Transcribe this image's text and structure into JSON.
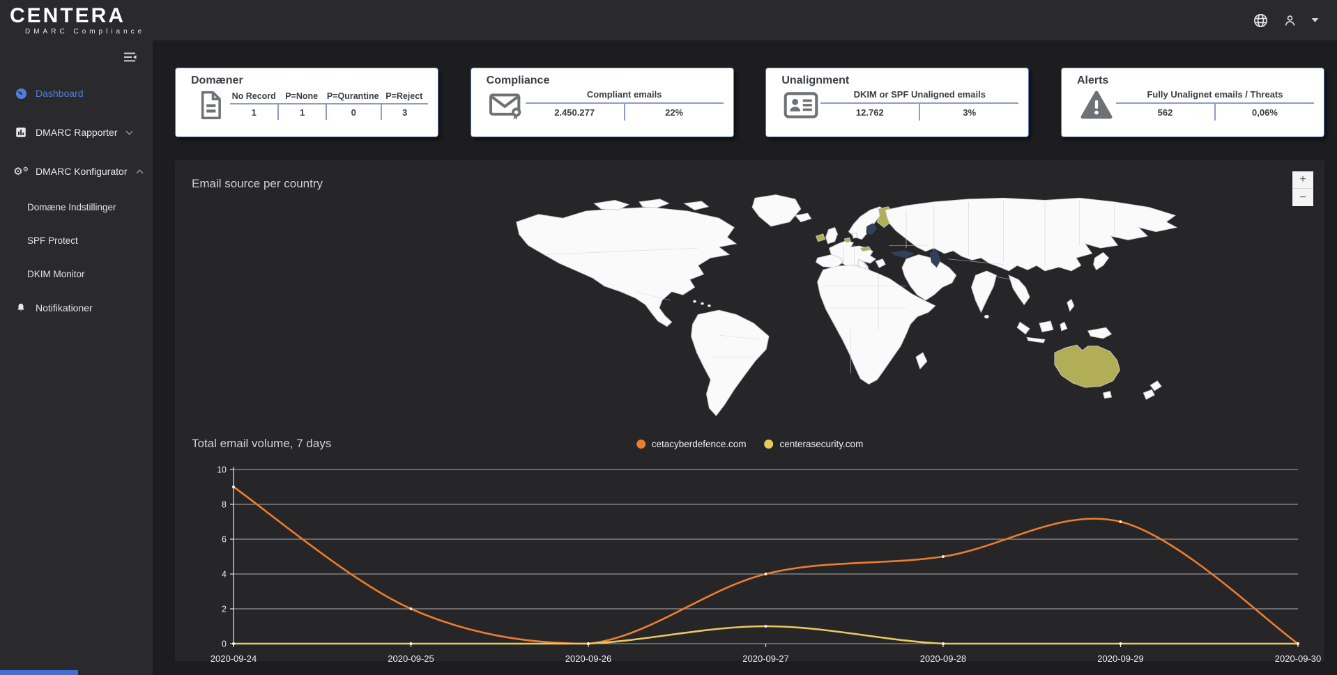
{
  "brand": {
    "name": "CENTERA",
    "subtitle": "DMARC Compliance"
  },
  "topbar": {
    "icons": [
      "globe-icon",
      "user-icon",
      "caret-down-icon"
    ]
  },
  "sidebar": {
    "toggle_icon": "collapse-menu-icon",
    "items": [
      {
        "label": "Dashboard",
        "icon": "gauge-icon",
        "active": true
      },
      {
        "label": "DMARC Rapporter",
        "icon": "bar-chart-icon",
        "chevron": "down"
      },
      {
        "label": "DMARC Konfigurator",
        "icon": "gears-icon",
        "chevron": "up"
      }
    ],
    "subitems": [
      {
        "label": "Domæne Indstillinger"
      },
      {
        "label": "SPF Protect"
      },
      {
        "label": "DKIM Monitor"
      }
    ],
    "notifications": {
      "label": "Notifikationer",
      "icon": "bell-icon"
    }
  },
  "cards": [
    {
      "title": "Domæner",
      "icon": "document-icon",
      "columns": [
        "No Record",
        "P=None",
        "P=Qurantine",
        "P=Reject"
      ],
      "values": [
        "1",
        "1",
        "0",
        "3"
      ]
    },
    {
      "title": "Compliance",
      "icon": "envelope-seal-icon",
      "columns": [
        "Compliant emails"
      ],
      "values": [
        "2.450.277",
        "22%"
      ]
    },
    {
      "title": "Unalignment",
      "icon": "id-card-icon",
      "columns": [
        "DKIM or SPF Unaligned emails"
      ],
      "values": [
        "12.762",
        "3%"
      ]
    },
    {
      "title": "Alerts",
      "icon": "warning-icon",
      "columns": [
        "Fully Unalignet emails / Threats"
      ],
      "values": [
        "562",
        "0,06%"
      ]
    }
  ],
  "map": {
    "title": "Email source per country",
    "zoom_in": "+",
    "zoom_out": "−",
    "highlight_color": "#b2ae58",
    "highlighted_countries": [
      "Finland",
      "Ireland",
      "Netherlands",
      "Austria",
      "Australia"
    ]
  },
  "chart_data": {
    "type": "line",
    "title": "Total email volume, 7 days",
    "x": [
      "2020-09-24",
      "2020-09-25",
      "2020-09-26",
      "2020-09-27",
      "2020-09-28",
      "2020-09-29",
      "2020-09-30"
    ],
    "series": [
      {
        "name": "cetacyberdefence.com",
        "color": "#ed7d2e",
        "values": [
          9,
          2,
          0,
          4,
          5,
          7,
          0
        ]
      },
      {
        "name": "centerasecurity.com",
        "color": "#e9c95e",
        "values": [
          0,
          0,
          0,
          1,
          0,
          0,
          0
        ]
      }
    ],
    "ylim": [
      0,
      10
    ],
    "yticks": [
      0,
      2,
      4,
      6,
      8,
      10
    ],
    "grid": true,
    "legend_position": "top-center",
    "smooth": true
  }
}
